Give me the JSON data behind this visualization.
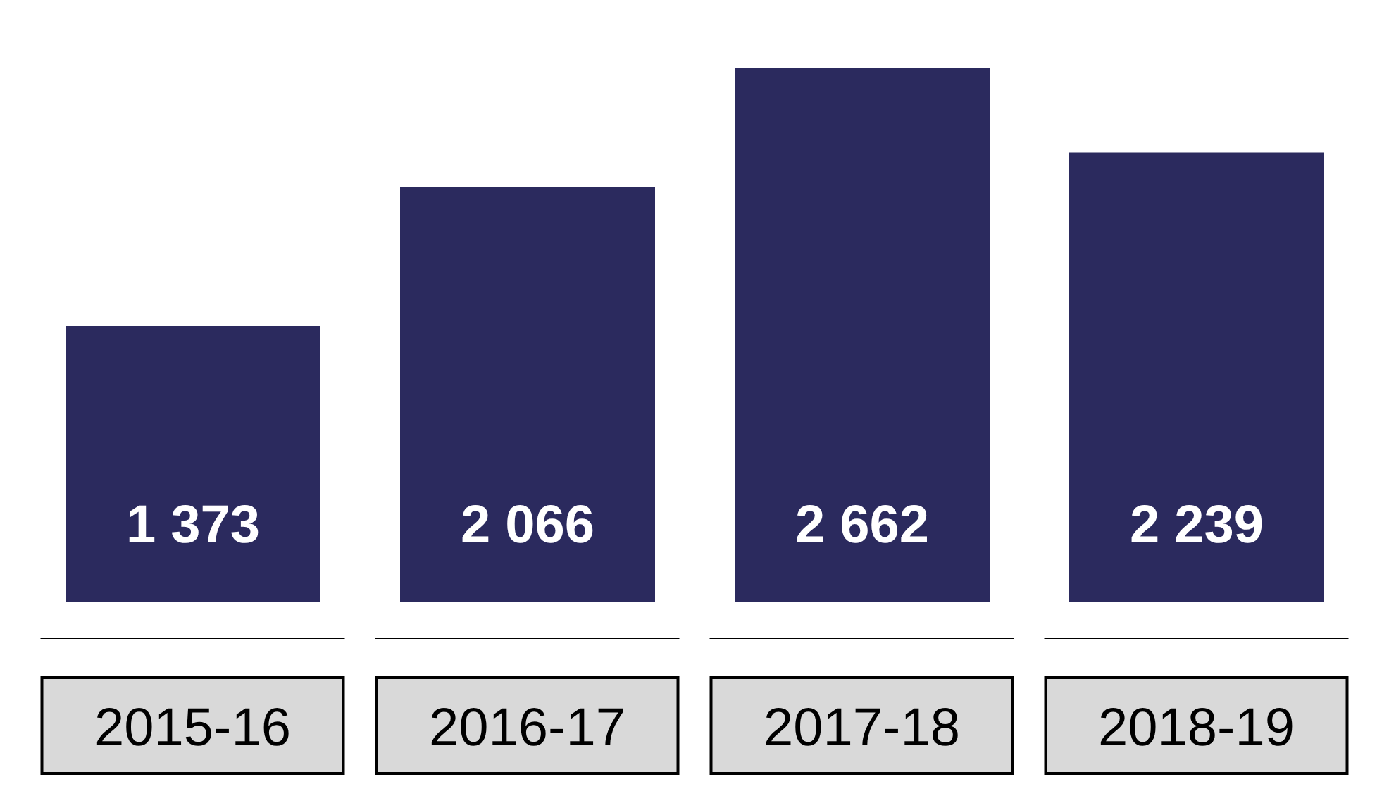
{
  "chart_data": {
    "type": "bar",
    "categories": [
      "2015-16",
      "2016-17",
      "2017-18",
      "2018-19"
    ],
    "values": [
      1373,
      2066,
      2662,
      2239
    ],
    "value_labels": [
      "1 373",
      "2 066",
      "2 662",
      "2 239"
    ],
    "color": "#2b2a5e",
    "tick_labels": "x"
  }
}
